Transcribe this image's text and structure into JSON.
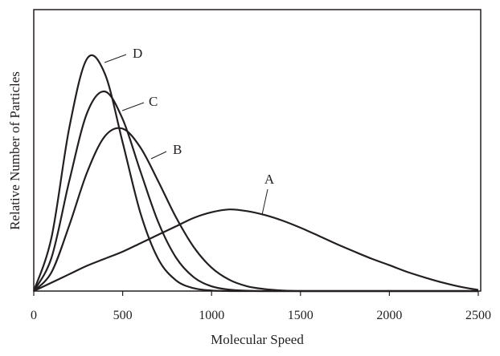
{
  "chart_data": {
    "type": "line",
    "title": "",
    "xlabel": "Molecular Speed",
    "ylabel": "Relative Number of Particles",
    "xlim": [
      0,
      2500
    ],
    "ylim": [
      0,
      1
    ],
    "xticks": [
      0,
      500,
      1000,
      1500,
      2000,
      2500
    ],
    "yticks": [],
    "grid": false,
    "legend": "none (curves labeled directly)",
    "x": [
      0,
      100,
      200,
      300,
      400,
      500,
      600,
      700,
      800,
      900,
      1000,
      1100,
      1200,
      1300,
      1400,
      1500,
      1600,
      1700,
      1800,
      1900,
      2000,
      2100,
      2200,
      2300,
      2400,
      2500
    ],
    "series": [
      {
        "name": "A",
        "values": [
          0,
          0.03,
          0.06,
          0.09,
          0.115,
          0.14,
          0.17,
          0.2,
          0.23,
          0.26,
          0.28,
          0.29,
          0.284,
          0.27,
          0.25,
          0.225,
          0.197,
          0.168,
          0.141,
          0.115,
          0.092,
          0.068,
          0.048,
          0.03,
          0.015,
          0.004
        ]
      },
      {
        "name": "B",
        "values": [
          0,
          0.067,
          0.234,
          0.422,
          0.55,
          0.577,
          0.51,
          0.39,
          0.262,
          0.156,
          0.083,
          0.04,
          0.017,
          0.007,
          0.002,
          0,
          0,
          0,
          0,
          0,
          0,
          0,
          0,
          0,
          0,
          0
        ]
      },
      {
        "name": "C",
        "values": [
          0,
          0.119,
          0.392,
          0.633,
          0.709,
          0.611,
          0.425,
          0.245,
          0.119,
          0.049,
          0.017,
          0.005,
          0.001,
          0,
          0,
          0,
          0,
          0,
          0,
          0,
          0,
          0,
          0,
          0,
          0,
          0
        ]
      },
      {
        "name": "D",
        "values": [
          0,
          0.191,
          0.581,
          0.826,
          0.772,
          0.528,
          0.277,
          0.114,
          0.038,
          0.01,
          0.002,
          0,
          0,
          0,
          0,
          0,
          0,
          0,
          0,
          0,
          0,
          0,
          0,
          0,
          0,
          0
        ]
      }
    ]
  }
}
